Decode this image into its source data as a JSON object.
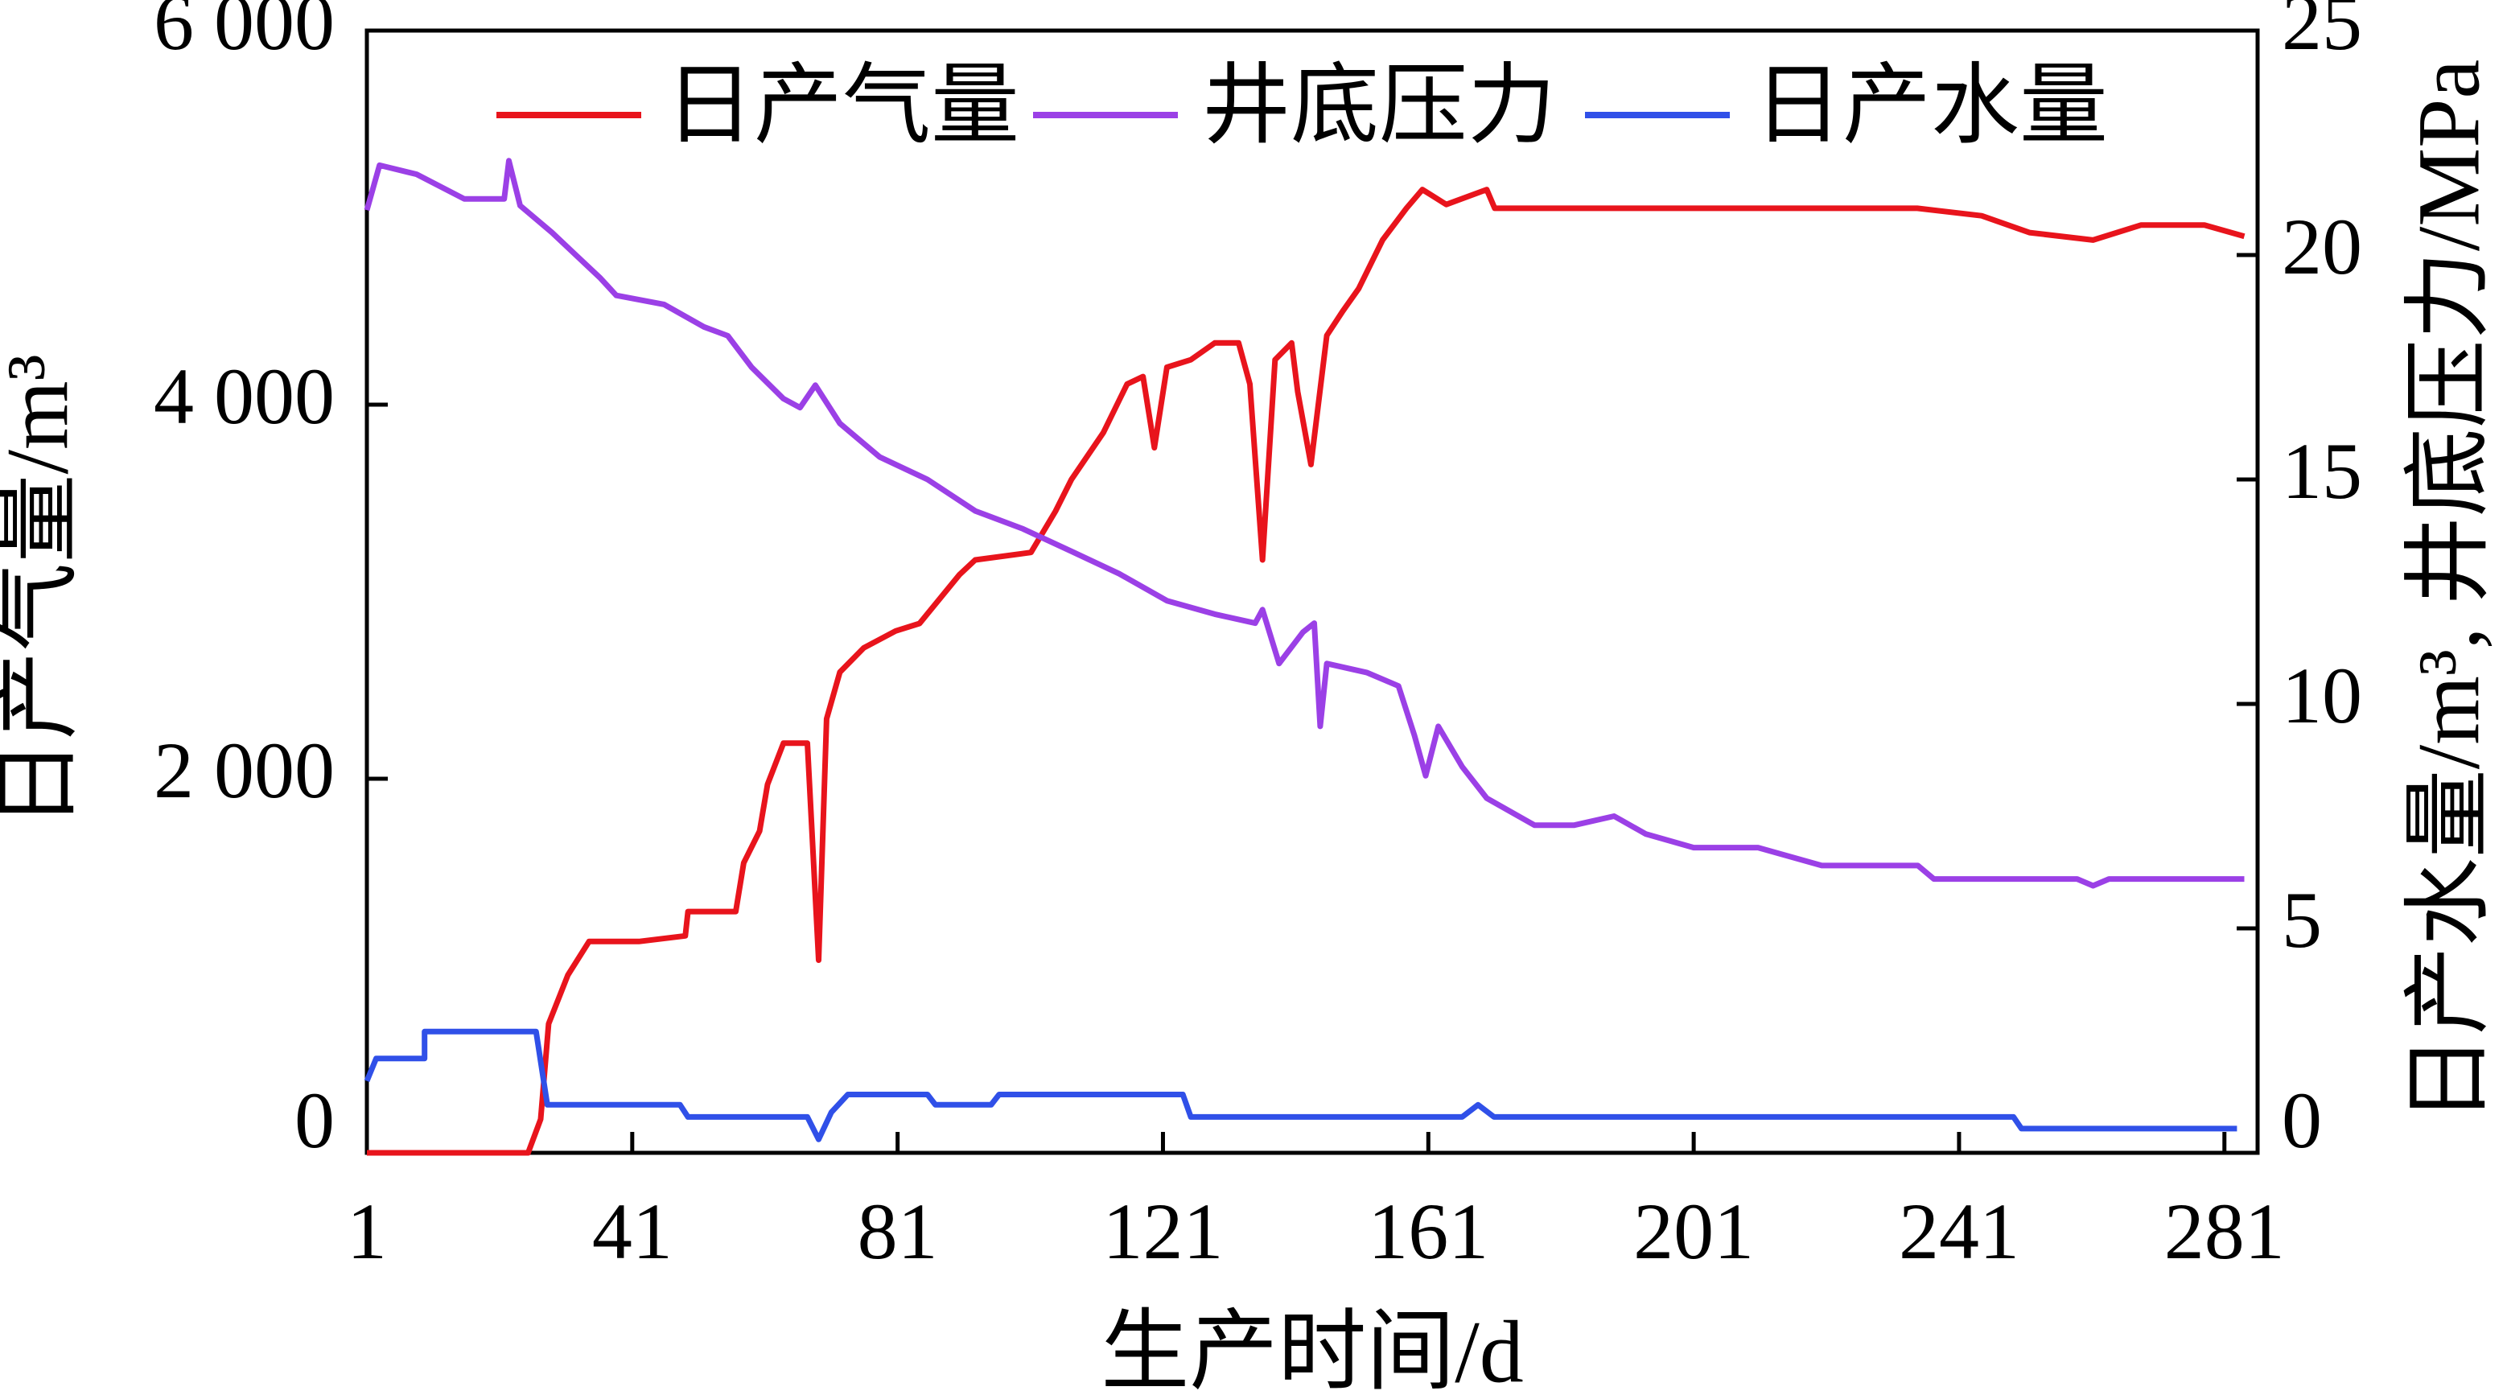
{
  "chart_data": {
    "type": "line",
    "x_label": "生产时间/d",
    "y_label": "日产气量/m³",
    "y2_label": "日产水量/m³, 井底压力/MPa",
    "xlim": [
      1,
      286
    ],
    "xticks": [
      1,
      41,
      81,
      121,
      161,
      201,
      241,
      281
    ],
    "ylim": [
      0,
      6000
    ],
    "yticks": [
      0,
      {
        "value": 2000,
        "label": "2 000"
      },
      {
        "value": 4000,
        "label": "4 000"
      },
      {
        "value": 6000,
        "label": "6 000"
      }
    ],
    "y2lim": [
      0,
      25
    ],
    "y2ticks": [
      0,
      5,
      10,
      15,
      20,
      25
    ],
    "legend": "top",
    "series": [
      {
        "name": "日产气量",
        "color": "#e8141c",
        "x": [
          1,
          25.3,
          27.2,
          28.4,
          31.3,
          34.5,
          42,
          49,
          49.4,
          56.6,
          57.8,
          60.2,
          61.4,
          63.8,
          67.4,
          69.1,
          70.3,
          72.3,
          75.9,
          80.7,
          84.3,
          90.3,
          92.7,
          101.1,
          104.8,
          107.2,
          112,
          115.6,
          118,
          119.7,
          121.6,
          125.2,
          128.8,
          132.4,
          134.1,
          136,
          137.9,
          140.4,
          141.3,
          143.3,
          145.7,
          148.1,
          150.5,
          154.1,
          157.7,
          160.1,
          163.7,
          169.8,
          171,
          201,
          234.7,
          244.4,
          251.6,
          261.2,
          268.4,
          278,
          284
        ],
        "values": [
          0,
          0,
          180,
          690,
          950,
          1130,
          1130,
          1160,
          1290,
          1290,
          1550,
          1720,
          1970,
          2190,
          2190,
          1030,
          2320,
          2570,
          2700,
          2790,
          2830,
          3090,
          3170,
          3210,
          3430,
          3600,
          3850,
          4110,
          4150,
          3770,
          4200,
          4240,
          4330,
          4330,
          4110,
          3170,
          4240,
          4330,
          4070,
          3680,
          4370,
          4500,
          4620,
          4880,
          5050,
          5150,
          5070,
          5150,
          5050,
          5050,
          5050,
          5010,
          4920,
          4880,
          4960,
          4960,
          4900
        ]
      },
      {
        "name": "井底压力",
        "color": "#9b40e6",
        "axis": "y2",
        "x": [
          1,
          2.9,
          8.5,
          15.7,
          21.7,
          22.4,
          24.1,
          28.9,
          32.5,
          36.1,
          38.6,
          45.8,
          51.8,
          55.4,
          59,
          63.8,
          66.3,
          68.6,
          72.3,
          78.3,
          85.5,
          92.7,
          99.9,
          107.2,
          114.4,
          121.6,
          128.8,
          134.9,
          136,
          138.5,
          142.1,
          143.8,
          144.7,
          145.7,
          151.7,
          156.5,
          158.9,
          160.6,
          162.5,
          166.1,
          169.8,
          177,
          183,
          189,
          193.8,
          201,
          210.7,
          220.3,
          234.8,
          237.2,
          258.8,
          261.2,
          263.6,
          284
        ],
        "values": [
          21.0,
          22.0,
          21.8,
          21.25,
          21.25,
          22.1,
          21.1,
          20.5,
          20.0,
          19.5,
          19.1,
          18.9,
          18.4,
          18.2,
          17.5,
          16.8,
          16.6,
          17.1,
          16.25,
          15.5,
          15.0,
          14.3,
          13.9,
          13.4,
          12.9,
          12.3,
          12.0,
          11.8,
          12.1,
          10.9,
          11.6,
          11.8,
          9.5,
          10.9,
          10.7,
          10.4,
          9.3,
          8.4,
          9.5,
          8.6,
          7.9,
          7.3,
          7.3,
          7.5,
          7.1,
          6.8,
          6.8,
          6.4,
          6.4,
          6.1,
          6.1,
          5.95,
          6.1,
          6.1
        ]
      },
      {
        "name": "日产水量",
        "color": "#3050e8",
        "axis": "y2",
        "x": [
          1,
          2.4,
          4.9,
          9.7,
          9.7,
          26.5,
          28.2,
          48.2,
          49.4,
          56.6,
          67.4,
          69.1,
          71,
          73.5,
          85.5,
          86.7,
          95.1,
          96.3,
          124,
          125.2,
          166.1,
          168.5,
          170.9,
          249.2,
          250.4,
          261.2,
          282.9
        ],
        "values": [
          1.6,
          2.1,
          2.1,
          2.1,
          2.7,
          2.7,
          1.07,
          1.07,
          0.8,
          0.8,
          0.8,
          0.3,
          0.9,
          1.3,
          1.3,
          1.07,
          1.07,
          1.3,
          1.3,
          0.8,
          0.8,
          1.07,
          0.8,
          0.8,
          0.54,
          0.54,
          0.54
        ]
      }
    ]
  }
}
